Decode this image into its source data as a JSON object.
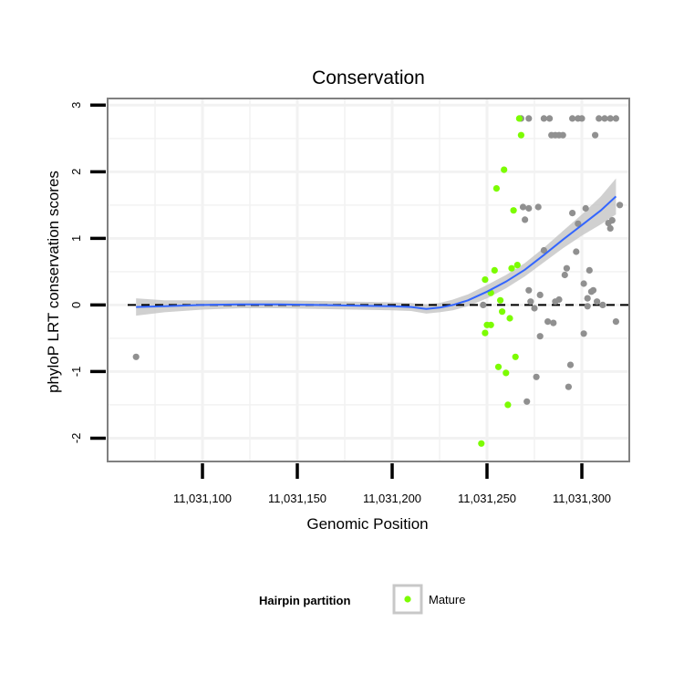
{
  "chart_data": {
    "type": "scatter",
    "title": "Conservation",
    "xlabel": "Genomic Position",
    "ylabel": "phyloP LRT conservation scores",
    "xlim": [
      11031050,
      11031325
    ],
    "ylim": [
      -2.35,
      3.1
    ],
    "x_ticks": [
      11031100,
      11031150,
      11031200,
      11031250,
      11031300
    ],
    "x_tick_labels": [
      "11,031,100",
      "11,031,150",
      "11,031,200",
      "11,031,250",
      "11,031,300"
    ],
    "y_ticks": [
      -2,
      -1,
      0,
      1,
      2,
      3
    ],
    "y_tick_labels": [
      "-2",
      "-1",
      "0",
      "1",
      "2",
      "3"
    ],
    "reference_line": {
      "y": 0,
      "style": "dashed"
    },
    "grid": true,
    "legend": {
      "title": "Hairpin partition",
      "position": "bottom",
      "entries": [
        {
          "label": "Mature",
          "color": "#7cfc00"
        }
      ]
    },
    "colors": {
      "mature": "#7cfc00",
      "other": "#909090",
      "smooth": "#3366ff",
      "ribbon": "#c8c8c8",
      "panel_border": "#808080",
      "grid": "#f2f2f2"
    },
    "series": [
      {
        "name": "Other",
        "color": "#909090",
        "points": [
          [
            11031065,
            -0.78
          ],
          [
            11031248,
            0.0
          ],
          [
            11031268,
            2.8
          ],
          [
            11031272,
            2.8
          ],
          [
            11031280,
            2.8
          ],
          [
            11031283,
            2.8
          ],
          [
            11031284,
            2.55
          ],
          [
            11031286,
            2.55
          ],
          [
            11031288,
            2.55
          ],
          [
            11031290,
            2.55
          ],
          [
            11031295,
            2.8
          ],
          [
            11031298,
            2.8
          ],
          [
            11031300,
            2.8
          ],
          [
            11031307,
            2.55
          ],
          [
            11031309,
            2.8
          ],
          [
            11031312,
            2.8
          ],
          [
            11031315,
            2.8
          ],
          [
            11031318,
            2.8
          ],
          [
            11031269,
            1.47
          ],
          [
            11031270,
            1.28
          ],
          [
            11031272,
            1.45
          ],
          [
            11031277,
            1.47
          ],
          [
            11031272,
            0.22
          ],
          [
            11031273,
            0.05
          ],
          [
            11031275,
            -0.05
          ],
          [
            11031278,
            0.15
          ],
          [
            11031280,
            0.82
          ],
          [
            11031282,
            -0.25
          ],
          [
            11031285,
            -0.27
          ],
          [
            11031286,
            0.05
          ],
          [
            11031288,
            0.08
          ],
          [
            11031276,
            -1.08
          ],
          [
            11031271,
            -1.45
          ],
          [
            11031278,
            -0.47
          ],
          [
            11031291,
            0.45
          ],
          [
            11031292,
            0.55
          ],
          [
            11031293,
            -1.23
          ],
          [
            11031295,
            1.38
          ],
          [
            11031297,
            0.8
          ],
          [
            11031298,
            1.22
          ],
          [
            11031302,
            1.45
          ],
          [
            11031304,
            0.52
          ],
          [
            11031305,
            0.2
          ],
          [
            11031306,
            0.22
          ],
          [
            11031294,
            -0.9
          ],
          [
            11031301,
            -0.43
          ],
          [
            11031303,
            -0.02
          ],
          [
            11031308,
            0.05
          ],
          [
            11031311,
            0.0
          ],
          [
            11031314,
            1.23
          ],
          [
            11031315,
            1.15
          ],
          [
            11031316,
            1.27
          ],
          [
            11031318,
            -0.25
          ],
          [
            11031320,
            1.5
          ],
          [
            11031301,
            0.32
          ],
          [
            11031303,
            0.1
          ]
        ]
      },
      {
        "name": "Mature",
        "color": "#7cfc00",
        "points": [
          [
            11031247,
            -2.08
          ],
          [
            11031249,
            -0.42
          ],
          [
            11031250,
            -0.3
          ],
          [
            11031252,
            -0.3
          ],
          [
            11031249,
            0.38
          ],
          [
            11031252,
            0.18
          ],
          [
            11031254,
            0.52
          ],
          [
            11031255,
            1.75
          ],
          [
            11031256,
            -0.93
          ],
          [
            11031257,
            0.07
          ],
          [
            11031258,
            -0.1
          ],
          [
            11031259,
            2.03
          ],
          [
            11031260,
            -1.02
          ],
          [
            11031261,
            -1.5
          ],
          [
            11031262,
            -0.2
          ],
          [
            11031263,
            0.55
          ],
          [
            11031264,
            1.42
          ],
          [
            11031265,
            -0.78
          ],
          [
            11031266,
            0.6
          ],
          [
            11031267,
            2.8
          ],
          [
            11031268,
            2.55
          ]
        ]
      }
    ],
    "smooth": {
      "name": "Loess fit",
      "points": [
        [
          11031065,
          -0.03
        ],
        [
          11031080,
          -0.02
        ],
        [
          11031100,
          0.0
        ],
        [
          11031120,
          0.01
        ],
        [
          11031140,
          0.01
        ],
        [
          11031160,
          0.0
        ],
        [
          11031180,
          -0.01
        ],
        [
          11031200,
          -0.02
        ],
        [
          11031210,
          -0.03
        ],
        [
          11031218,
          -0.06
        ],
        [
          11031225,
          -0.04
        ],
        [
          11031232,
          0.0
        ],
        [
          11031240,
          0.07
        ],
        [
          11031250,
          0.2
        ],
        [
          11031260,
          0.35
        ],
        [
          11031270,
          0.53
        ],
        [
          11031280,
          0.75
        ],
        [
          11031290,
          0.98
        ],
        [
          11031300,
          1.2
        ],
        [
          11031310,
          1.42
        ],
        [
          11031318,
          1.63
        ]
      ],
      "ribbon_halfwidth": [
        0.13,
        0.09,
        0.07,
        0.06,
        0.06,
        0.06,
        0.06,
        0.06,
        0.06,
        0.07,
        0.07,
        0.08,
        0.09,
        0.1,
        0.1,
        0.1,
        0.11,
        0.13,
        0.16,
        0.21,
        0.27
      ]
    }
  }
}
